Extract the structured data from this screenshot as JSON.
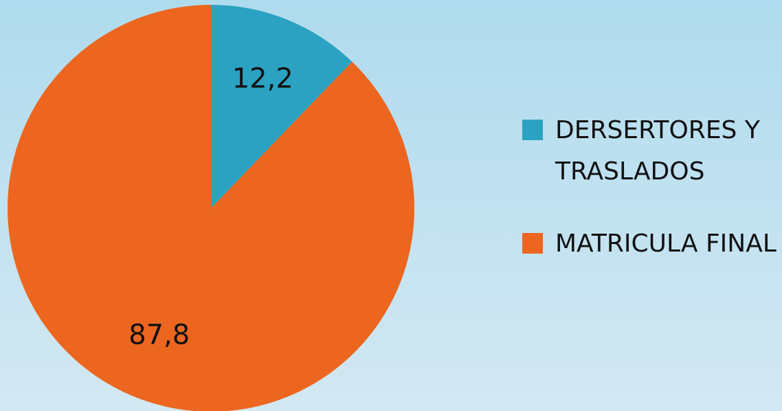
{
  "chart_data": {
    "type": "pie",
    "categories": [
      "DERSERTORES Y TRASLADOS",
      "MATRICULA FINAL"
    ],
    "values": [
      12.2,
      87.8
    ],
    "value_labels": [
      "12,2",
      "87,8"
    ],
    "colors": [
      "#2ca2c2",
      "#ec661f"
    ],
    "legend": "right"
  }
}
